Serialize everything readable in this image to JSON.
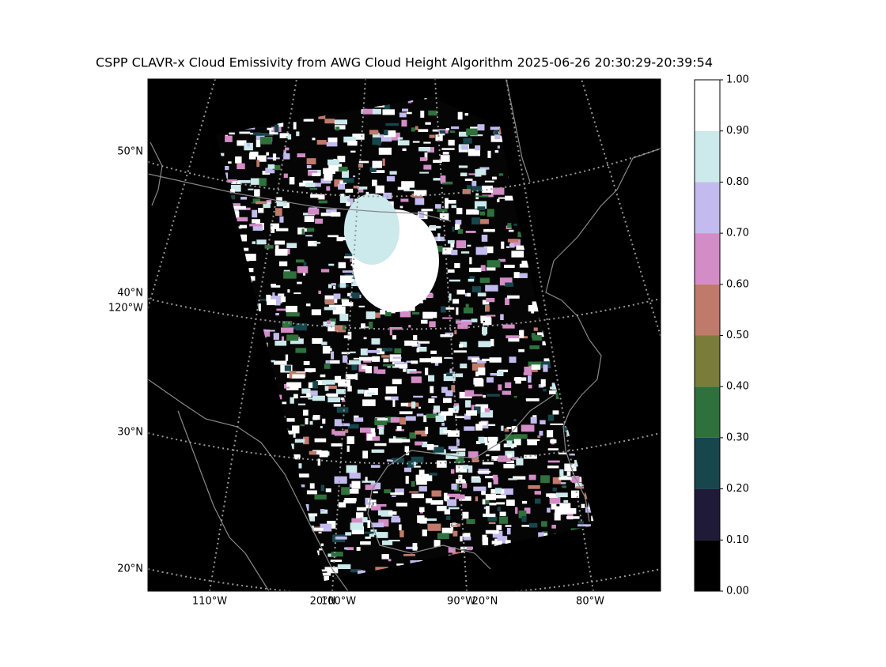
{
  "map": {
    "title": "CSPP CLAVR-x Cloud Emissivity from AWG Cloud Height Algorithm 2025-06-26 20:30:29-20:39:54",
    "left_labels": [
      "50°N",
      "40°N",
      "120°W",
      "30°N",
      "20°N"
    ],
    "bottom_labels": [
      "110°W",
      "20°N",
      "100°W",
      "90°W",
      "20°N",
      "80°W"
    ],
    "colorbar": {
      "colors": [
        "#000000",
        "#1e1a38",
        "#17464c",
        "#2e713c",
        "#7a7d39",
        "#c07a6c",
        "#d48cc6",
        "#c3bbef",
        "#cce9ec",
        "#ffffff"
      ],
      "lim": [
        0,
        1
      ],
      "ticks": [
        {
          "value": 0,
          "label": "0.00"
        },
        {
          "value": 0.1,
          "label": "0.10"
        },
        {
          "value": 0.2,
          "label": "0.20"
        },
        {
          "value": 0.3,
          "label": "0.30"
        },
        {
          "value": 0.4,
          "label": "0.40"
        },
        {
          "value": 0.5,
          "label": "0.50"
        },
        {
          "value": 0.6,
          "label": "0.60"
        },
        {
          "value": 0.7,
          "label": "0.70"
        },
        {
          "value": 0.8,
          "label": "0.80"
        },
        {
          "value": 0.9,
          "label": "0.90"
        },
        {
          "value": 1,
          "label": "1.00"
        }
      ]
    }
  }
}
